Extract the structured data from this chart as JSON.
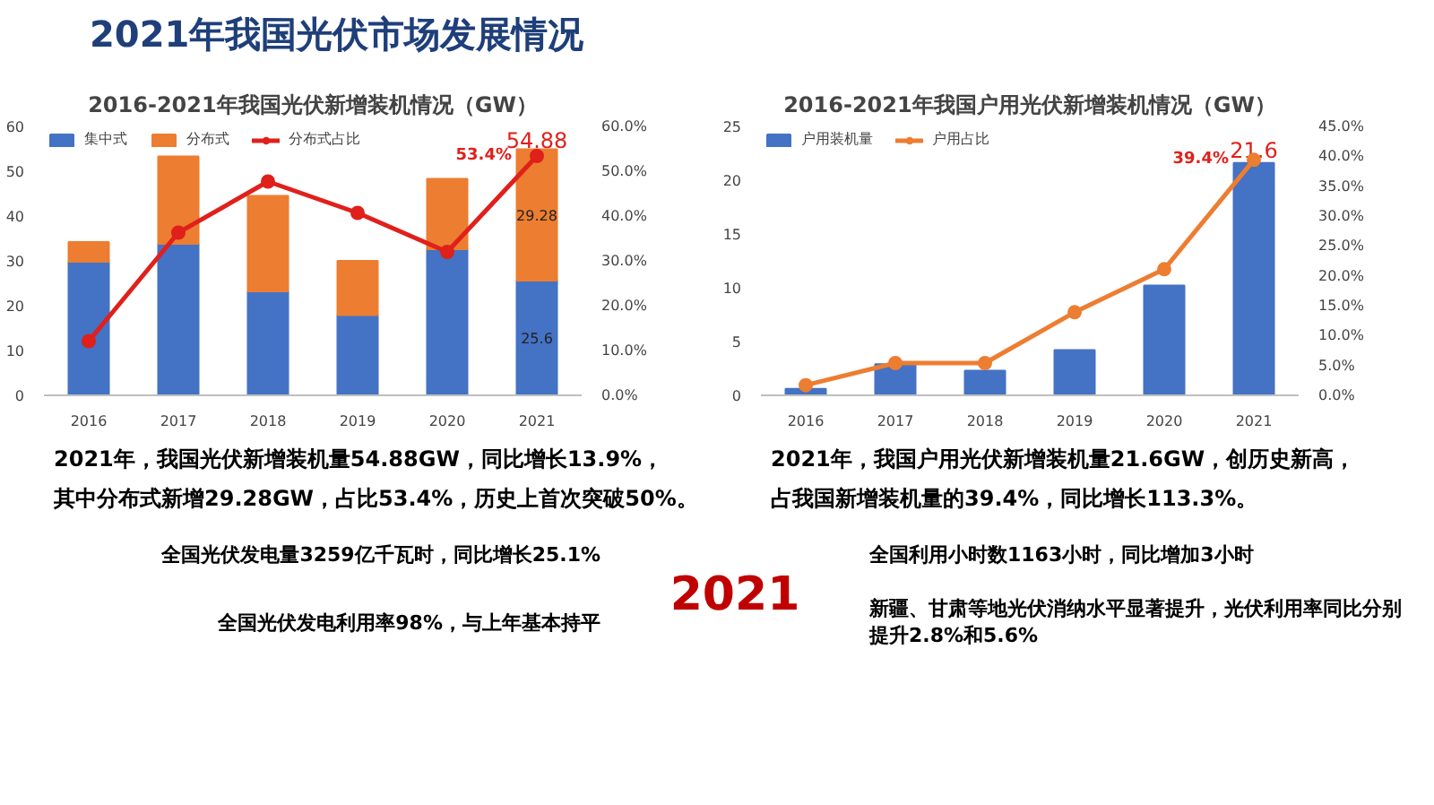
{
  "chart_data": [
    {
      "type": "other",
      "title": "2021年我国光伏市场发展情况",
      "annotations": [
        "全国光伏发电量3259亿千瓦时，同比增长25.1%",
        "2021",
        "全国利用小时数1163小时，同比增加3小时",
        "全国光伏发电利用率98%，与上年基本持平",
        "新疆、甘肃等地光伏消纳水平显著提升，光伏利用率同比分别提升2.8%和5.6%"
      ]
    },
    {
      "type": "bar",
      "title": "2016-2021年我国光伏新增装机情况（GW）",
      "categories": [
        "2016",
        "2017",
        "2018",
        "2019",
        "2020",
        "2021"
      ],
      "stacked": true,
      "series": [
        {
          "name": "集中式",
          "color": "#4472c4",
          "values": [
            29.8,
            33.8,
            23.2,
            17.9,
            32.6,
            25.6
          ],
          "value_labels": [
            null,
            null,
            null,
            null,
            null,
            "25.6"
          ]
        },
        {
          "name": "分布式",
          "color": "#ed7d31",
          "values": [
            4.4,
            19.5,
            21.3,
            12.1,
            15.7,
            29.28
          ],
          "value_labels": [
            null,
            null,
            null,
            null,
            null,
            "29.28"
          ]
        },
        {
          "name": "分布式占比",
          "type": "line",
          "axis": "y2",
          "color": "#e0201b",
          "marker": "circle",
          "values": [
            12.1,
            36.3,
            47.7,
            40.7,
            32.0,
            53.4
          ],
          "value_labels": [
            null,
            null,
            null,
            null,
            null,
            "53.4%"
          ]
        }
      ],
      "totals": [
        null,
        null,
        null,
        null,
        null,
        "54.88"
      ],
      "ylim": [
        0,
        60
      ],
      "yticks": [
        0,
        10,
        20,
        30,
        40,
        50,
        60
      ],
      "y2lim": [
        0,
        60
      ],
      "y2ticks": [
        {
          "value": 0,
          "label": "0.0%"
        },
        {
          "value": 10,
          "label": "10.0%"
        },
        {
          "value": 20,
          "label": "20.0%"
        },
        {
          "value": 30,
          "label": "30.0%"
        },
        {
          "value": 40,
          "label": "40.0%"
        },
        {
          "value": 50,
          "label": "50.0%"
        },
        {
          "value": 60,
          "label": "60.0%"
        }
      ],
      "legend": "top left",
      "grid": false,
      "annotations": [
        "2021年，我国光伏新增装机量54.88GW，同比增长13.9%，",
        "其中分布式新增29.28GW，占比53.4%，历史上首次突破50%。"
      ]
    },
    {
      "type": "bar",
      "title": "2016-2021年我国户用光伏新增装机情况（GW）",
      "categories": [
        "2016",
        "2017",
        "2018",
        "2019",
        "2020",
        "2021"
      ],
      "series": [
        {
          "name": "户用装机量",
          "color": "#4472c4",
          "values": [
            0.6,
            2.9,
            2.3,
            4.2,
            10.2,
            21.6
          ],
          "value_labels": [
            null,
            null,
            null,
            null,
            null,
            "21.6"
          ]
        },
        {
          "name": "户用占比",
          "type": "line",
          "axis": "y2",
          "color": "#ed7d31",
          "marker": "circle",
          "values": [
            1.7,
            5.4,
            5.4,
            13.9,
            21.1,
            39.4
          ],
          "value_labels": [
            null,
            null,
            null,
            null,
            null,
            "39.4%"
          ]
        }
      ],
      "ylim": [
        0,
        25
      ],
      "yticks": [
        0,
        5,
        10,
        15,
        20,
        25
      ],
      "y2lim": [
        0,
        45
      ],
      "y2ticks": [
        {
          "value": 0,
          "label": "0.0%"
        },
        {
          "value": 5,
          "label": "5.0%"
        },
        {
          "value": 10,
          "label": "10.0%"
        },
        {
          "value": 15,
          "label": "15.0%"
        },
        {
          "value": 20,
          "label": "20.0%"
        },
        {
          "value": 25,
          "label": "25.0%"
        },
        {
          "value": 30,
          "label": "30.0%"
        },
        {
          "value": 35,
          "label": "35.0%"
        },
        {
          "value": 40,
          "label": "40.0%"
        },
        {
          "value": 45,
          "label": "45.0%"
        }
      ],
      "legend": "top left",
      "grid": false,
      "annotations": [
        "2021年，我国户用光伏新增装机量21.6GW，创历史新高，",
        "占我国新增装机量的39.4%，同比增长113.3%。"
      ]
    }
  ]
}
